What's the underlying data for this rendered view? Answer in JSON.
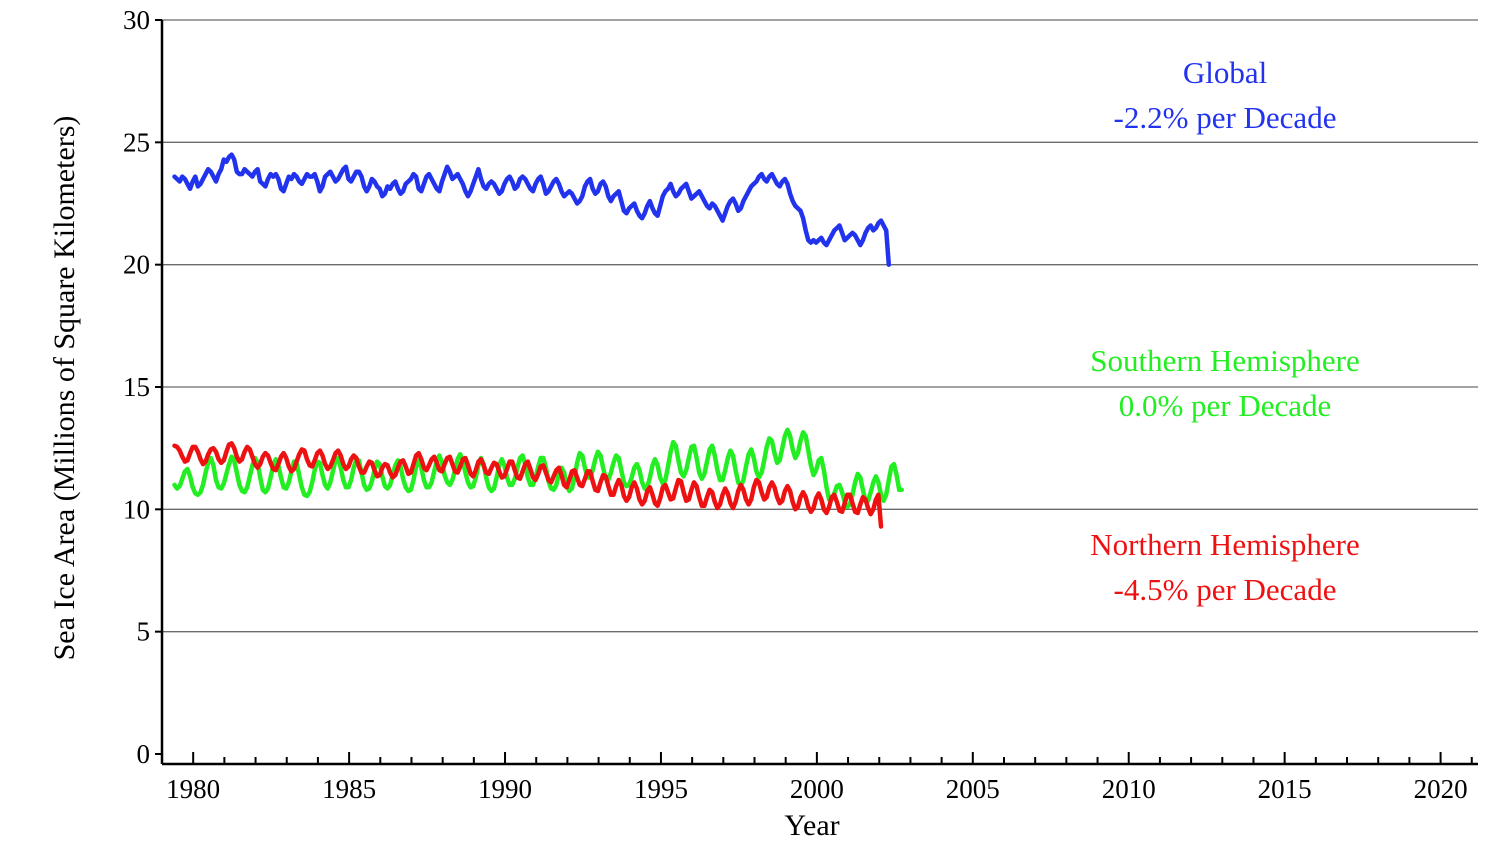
{
  "chart_data": {
    "type": "line",
    "xlabel": "Year",
    "ylabel": "Sea Ice Area (Millions of Square Kilometers)",
    "xlim": [
      1979,
      2021.2
    ],
    "ylim": [
      0,
      30
    ],
    "x_ticks": [
      "1980",
      "1985",
      "1990",
      "1995",
      "2000",
      "2005",
      "2010",
      "2015",
      "2020"
    ],
    "y_ticks": [
      "0",
      "5",
      "10",
      "15",
      "20",
      "25",
      "30"
    ],
    "grid": "horizontal",
    "x_start": 1979.4,
    "x_step": 0.0833,
    "series": [
      {
        "name": "Global",
        "color": "#2233ee",
        "values": [
          23.6,
          23.5,
          23.4,
          23.6,
          23.5,
          23.3,
          23.1,
          23.4,
          23.6,
          23.2,
          23.3,
          23.5,
          23.7,
          23.9,
          23.8,
          23.6,
          23.4,
          23.7,
          23.9,
          24.3,
          24.2,
          24.4,
          24.5,
          24.3,
          23.8,
          23.7,
          23.7,
          23.9,
          23.8,
          23.7,
          23.6,
          23.8,
          23.9,
          23.4,
          23.3,
          23.2,
          23.5,
          23.7,
          23.6,
          23.7,
          23.5,
          23.1,
          23.0,
          23.3,
          23.6,
          23.5,
          23.7,
          23.6,
          23.4,
          23.3,
          23.5,
          23.7,
          23.6,
          23.6,
          23.7,
          23.4,
          23.0,
          23.2,
          23.6,
          23.7,
          23.8,
          23.6,
          23.4,
          23.5,
          23.7,
          23.9,
          24.0,
          23.5,
          23.4,
          23.6,
          23.8,
          23.8,
          23.6,
          23.2,
          23.0,
          23.2,
          23.5,
          23.4,
          23.2,
          23.1,
          22.8,
          22.9,
          23.2,
          23.1,
          23.3,
          23.4,
          23.1,
          22.9,
          23.0,
          23.3,
          23.4,
          23.5,
          23.7,
          23.6,
          23.1,
          23.0,
          23.3,
          23.6,
          23.7,
          23.5,
          23.3,
          23.1,
          23.0,
          23.4,
          23.7,
          24.0,
          23.8,
          23.5,
          23.6,
          23.7,
          23.5,
          23.3,
          23.0,
          22.8,
          23.0,
          23.3,
          23.6,
          23.9,
          23.5,
          23.2,
          23.1,
          23.3,
          23.4,
          23.3,
          23.1,
          22.9,
          23.0,
          23.3,
          23.5,
          23.6,
          23.4,
          23.1,
          23.2,
          23.5,
          23.6,
          23.5,
          23.3,
          23.1,
          23.0,
          23.3,
          23.5,
          23.6,
          23.3,
          22.9,
          23.0,
          23.2,
          23.4,
          23.5,
          23.3,
          23.0,
          22.8,
          22.9,
          23.0,
          22.9,
          22.7,
          22.5,
          22.6,
          22.8,
          23.2,
          23.4,
          23.5,
          23.1,
          22.9,
          23.0,
          23.3,
          23.4,
          23.2,
          22.8,
          22.6,
          22.8,
          22.9,
          23.0,
          22.6,
          22.2,
          22.1,
          22.3,
          22.4,
          22.5,
          22.2,
          22.0,
          21.9,
          22.1,
          22.4,
          22.6,
          22.3,
          22.1,
          22.0,
          22.4,
          22.8,
          23.0,
          23.1,
          23.3,
          23.0,
          22.8,
          22.9,
          23.1,
          23.2,
          23.3,
          23.0,
          22.7,
          22.8,
          22.9,
          23.0,
          22.8,
          22.6,
          22.4,
          22.3,
          22.5,
          22.4,
          22.2,
          22.0,
          21.8,
          22.1,
          22.4,
          22.6,
          22.7,
          22.5,
          22.2,
          22.3,
          22.6,
          22.8,
          23.0,
          23.2,
          23.3,
          23.4,
          23.6,
          23.7,
          23.5,
          23.4,
          23.6,
          23.7,
          23.5,
          23.3,
          23.2,
          23.4,
          23.5,
          23.3,
          22.9,
          22.6,
          22.4,
          22.3,
          22.2,
          21.9,
          21.4,
          21.0,
          20.9,
          21.0,
          20.9,
          21.0,
          21.1,
          20.9,
          20.8,
          21.0,
          21.2,
          21.4,
          21.5,
          21.6,
          21.3,
          21.0,
          21.1,
          21.2,
          21.3,
          21.2,
          21.0,
          20.8,
          21.0,
          21.3,
          21.5,
          21.6,
          21.4,
          21.5,
          21.7,
          21.8,
          21.6,
          21.4,
          20.0
        ]
      },
      {
        "name": "Southern Hemisphere",
        "color": "#22ee22",
        "values": [
          11.0,
          10.85,
          10.95,
          11.25,
          11.55,
          11.65,
          11.35,
          10.9,
          10.65,
          10.6,
          10.7,
          11.0,
          11.5,
          11.9,
          12.1,
          11.8,
          11.2,
          10.9,
          10.85,
          11.05,
          11.45,
          11.85,
          12.15,
          12.0,
          11.5,
          11.0,
          10.75,
          10.7,
          10.9,
          11.35,
          11.8,
          12.1,
          11.9,
          11.3,
          10.8,
          10.7,
          10.85,
          11.3,
          11.8,
          12.05,
          11.8,
          11.3,
          10.9,
          10.85,
          11.1,
          11.55,
          11.95,
          11.9,
          11.4,
          10.9,
          10.6,
          10.55,
          10.7,
          11.1,
          11.6,
          11.95,
          11.9,
          11.4,
          11.0,
          10.85,
          11.1,
          11.55,
          12.0,
          12.1,
          11.7,
          11.2,
          10.9,
          10.9,
          11.2,
          11.7,
          12.05,
          12.0,
          11.5,
          11.0,
          10.8,
          10.85,
          11.15,
          11.6,
          11.95,
          11.85,
          11.35,
          10.95,
          10.85,
          11.0,
          11.4,
          11.8,
          12.0,
          11.75,
          11.25,
          10.9,
          10.75,
          10.8,
          11.2,
          11.75,
          12.0,
          11.7,
          11.2,
          10.9,
          10.9,
          11.1,
          11.55,
          12.0,
          12.2,
          11.9,
          11.4,
          11.1,
          11.0,
          11.2,
          11.6,
          12.05,
          12.25,
          12.0,
          11.5,
          11.1,
          10.9,
          10.95,
          11.3,
          11.8,
          12.1,
          11.85,
          11.3,
          10.9,
          10.75,
          10.85,
          11.3,
          11.8,
          12.05,
          11.8,
          11.3,
          11.0,
          11.0,
          11.25,
          11.7,
          12.1,
          12.2,
          11.85,
          11.3,
          11.0,
          11.0,
          11.3,
          11.75,
          12.1,
          12.1,
          11.7,
          11.15,
          10.85,
          10.8,
          11.0,
          11.45,
          11.7,
          11.5,
          11.0,
          10.75,
          10.85,
          11.3,
          11.9,
          12.3,
          12.2,
          11.7,
          11.3,
          11.3,
          11.6,
          12.05,
          12.35,
          12.2,
          11.7,
          11.25,
          11.2,
          11.5,
          11.9,
          12.2,
          12.1,
          11.6,
          11.1,
          10.95,
          11.0,
          11.3,
          11.7,
          11.85,
          11.6,
          11.1,
          10.85,
          10.9,
          11.3,
          11.8,
          12.05,
          11.8,
          11.3,
          11.05,
          11.2,
          11.75,
          12.35,
          12.75,
          12.6,
          12.0,
          11.5,
          11.35,
          11.6,
          12.1,
          12.55,
          12.6,
          12.1,
          11.5,
          11.25,
          11.45,
          11.95,
          12.45,
          12.6,
          12.2,
          11.6,
          11.2,
          11.2,
          11.6,
          12.1,
          12.4,
          12.2,
          11.6,
          11.1,
          10.95,
          11.2,
          11.75,
          12.25,
          12.45,
          12.1,
          11.55,
          11.3,
          11.5,
          12.0,
          12.55,
          12.9,
          12.8,
          12.3,
          11.9,
          12.0,
          12.5,
          13.0,
          13.25,
          13.0,
          12.45,
          12.1,
          12.3,
          12.8,
          13.15,
          13.0,
          12.4,
          11.8,
          11.4,
          11.6,
          12.0,
          12.1,
          11.6,
          10.9,
          10.4,
          10.4,
          10.65,
          10.95,
          11.0,
          10.7,
          10.3,
          10.1,
          10.2,
          10.6,
          11.1,
          11.45,
          11.3,
          10.8,
          10.35,
          10.35,
          10.7,
          11.1,
          11.35,
          11.1,
          10.6,
          10.35,
          10.6,
          11.2,
          11.75,
          11.85,
          11.4,
          10.8,
          10.8
        ]
      },
      {
        "name": "Northern Hemisphere",
        "color": "#ee1111",
        "values": [
          12.6,
          12.55,
          12.4,
          12.15,
          11.95,
          12.0,
          12.3,
          12.55,
          12.55,
          12.35,
          12.05,
          11.85,
          11.95,
          12.25,
          12.45,
          12.5,
          12.35,
          12.05,
          11.9,
          12.0,
          12.35,
          12.65,
          12.7,
          12.5,
          12.15,
          11.95,
          12.05,
          12.35,
          12.55,
          12.45,
          12.15,
          11.85,
          11.7,
          11.85,
          12.15,
          12.3,
          12.2,
          11.9,
          11.65,
          11.6,
          11.85,
          12.15,
          12.3,
          12.1,
          11.75,
          11.55,
          11.65,
          11.95,
          12.25,
          12.45,
          12.4,
          12.05,
          11.8,
          11.75,
          12.0,
          12.3,
          12.4,
          12.2,
          11.85,
          11.65,
          11.75,
          12.0,
          12.3,
          12.4,
          12.2,
          11.85,
          11.65,
          11.75,
          12.05,
          12.2,
          12.1,
          11.75,
          11.5,
          11.5,
          11.75,
          11.95,
          11.9,
          11.6,
          11.35,
          11.4,
          11.7,
          11.85,
          11.8,
          11.5,
          11.3,
          11.4,
          11.7,
          11.95,
          12.0,
          11.75,
          11.45,
          11.5,
          11.85,
          12.2,
          12.3,
          12.05,
          11.7,
          11.6,
          11.8,
          12.05,
          12.15,
          11.9,
          11.6,
          11.55,
          11.85,
          12.1,
          12.15,
          11.85,
          11.55,
          11.5,
          11.75,
          12.05,
          12.1,
          11.8,
          11.45,
          11.35,
          11.6,
          11.95,
          12.05,
          11.8,
          11.5,
          11.45,
          11.7,
          11.9,
          11.85,
          11.55,
          11.3,
          11.35,
          11.65,
          11.95,
          11.95,
          11.6,
          11.3,
          11.25,
          11.55,
          11.85,
          11.95,
          11.65,
          11.3,
          11.2,
          11.45,
          11.75,
          11.8,
          11.5,
          11.2,
          11.1,
          11.35,
          11.6,
          11.7,
          11.4,
          11.0,
          10.9,
          11.2,
          11.55,
          11.6,
          11.3,
          11.0,
          10.95,
          11.25,
          11.55,
          11.55,
          11.15,
          10.8,
          10.75,
          11.1,
          11.4,
          11.35,
          10.95,
          10.6,
          10.6,
          10.95,
          11.2,
          11.0,
          10.55,
          10.35,
          10.5,
          10.9,
          11.1,
          10.85,
          10.4,
          10.2,
          10.35,
          10.75,
          10.9,
          10.6,
          10.25,
          10.15,
          10.45,
          10.9,
          11.0,
          10.7,
          10.4,
          10.45,
          10.85,
          11.2,
          11.15,
          10.7,
          10.35,
          10.4,
          10.8,
          11.1,
          10.95,
          10.5,
          10.15,
          10.15,
          10.5,
          10.8,
          10.7,
          10.3,
          10.05,
          10.2,
          10.6,
          10.85,
          10.65,
          10.25,
          10.05,
          10.3,
          10.75,
          11.0,
          10.8,
          10.4,
          10.2,
          10.4,
          10.9,
          11.2,
          11.1,
          10.7,
          10.4,
          10.5,
          10.9,
          11.1,
          10.9,
          10.5,
          10.25,
          10.35,
          10.75,
          10.95,
          10.75,
          10.3,
          10.0,
          10.1,
          10.5,
          10.7,
          10.5,
          10.1,
          9.9,
          10.05,
          10.45,
          10.65,
          10.4,
          10.0,
          9.85,
          10.1,
          10.5,
          10.6,
          10.3,
          9.95,
          9.9,
          10.25,
          10.6,
          10.6,
          10.25,
          9.9,
          9.85,
          10.2,
          10.5,
          10.4,
          10.05,
          9.8,
          10.0,
          10.4,
          10.6,
          9.3
        ]
      }
    ]
  },
  "annotations": {
    "global_name": "Global",
    "global_trend": "-2.2% per Decade",
    "southern_name": "Southern Hemisphere",
    "southern_trend": "0.0% per Decade",
    "northern_name": "Northern Hemisphere",
    "northern_trend": "-4.5% per Decade"
  }
}
